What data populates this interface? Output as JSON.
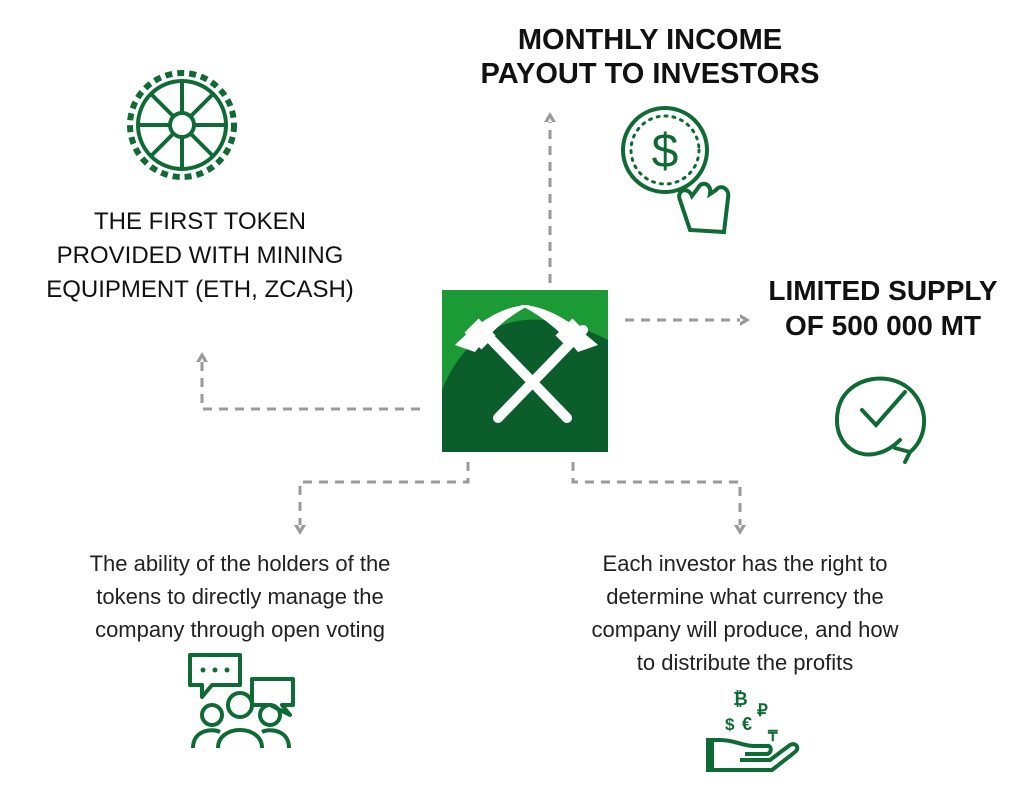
{
  "colors": {
    "brand_green": "#0f6b34",
    "logo_light_green": "#1c9a36",
    "logo_dark_green": "#0b5e2c",
    "connector_gray": "#9a9a9a"
  },
  "center": {
    "icon": "crossed-pickaxes-logo"
  },
  "nodes": {
    "income": {
      "title_line1": "MONTHLY INCOME",
      "title_line2": "PAYOUT TO INVESTORS",
      "icon": "dollar-coin-click-icon"
    },
    "first_token": {
      "line1": "THE FIRST TOKEN",
      "line2": "PROVIDED WITH MINING",
      "line3": "EQUIPMENT (ETH, ZCASH)",
      "icon": "gear-icon"
    },
    "supply": {
      "title_line1": "LIMITED SUPPLY",
      "title_line2": "OF 500 000 MT",
      "icon": "circular-check-icon"
    },
    "voting": {
      "line1": "The ability of the holders of the",
      "line2": "tokens to directly manage the",
      "line3": "company through open voting",
      "icon": "people-chat-icon"
    },
    "investor": {
      "line1": "Each investor has the right to",
      "line2": "determine what currency the",
      "line3": "company will produce, and how",
      "line4": "to distribute the profits",
      "icon": "hand-currency-icon"
    }
  }
}
